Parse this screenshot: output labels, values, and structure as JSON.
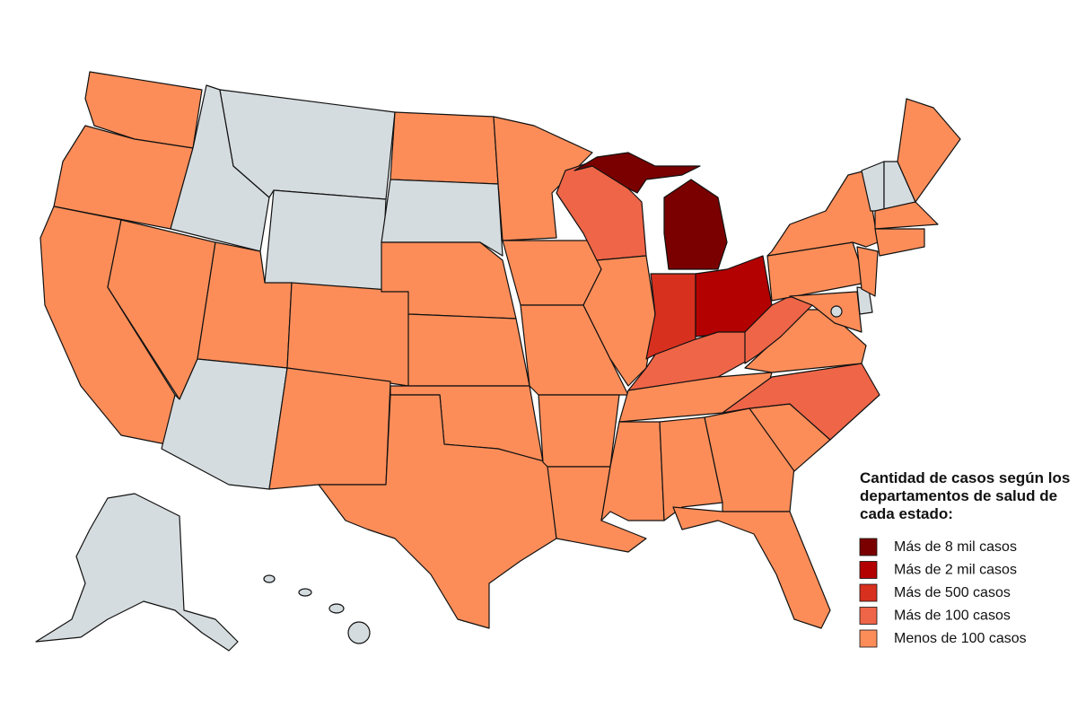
{
  "legend": {
    "title_lines": [
      "Cantidad de casos según los",
      "departamentos de salud de",
      "cada estado:"
    ],
    "items": [
      {
        "label": "Más de 8 mil casos",
        "color": "#7a0000"
      },
      {
        "label": "Más de 2 mil casos",
        "color": "#b30000"
      },
      {
        "label": "Más de 500 casos",
        "color": "#d7301f"
      },
      {
        "label": "Más de 100 casos",
        "color": "#ef6548"
      },
      {
        "label": "Menos de 100 casos",
        "color": "#fc8d59"
      }
    ]
  },
  "no_data_color": "#d5dcdf"
}
